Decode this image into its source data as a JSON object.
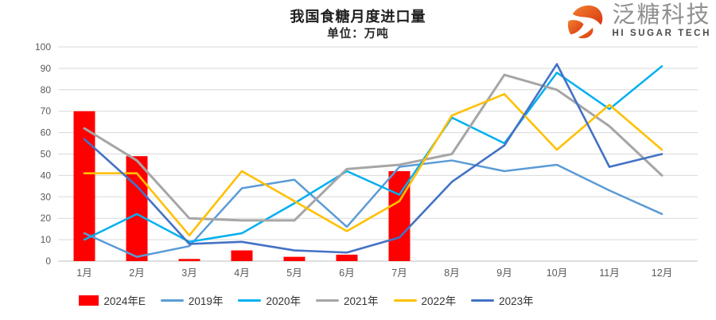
{
  "header": {
    "title": "我国食糖月度进口量",
    "subtitle": "单位：万吨"
  },
  "logo": {
    "cn_name": "泛糖科技",
    "en_name": "HI SUGAR TECH",
    "icon": "swirl-sphere-icon",
    "icon_color_start": "#F0812C",
    "icon_color_end": "#DB3512"
  },
  "chart_data": {
    "type": "combo-bar-line",
    "title": "我国食糖月度进口量",
    "subtitle": "单位：万吨",
    "ylabel": "万吨",
    "categories": [
      "1月",
      "2月",
      "3月",
      "4月",
      "5月",
      "6月",
      "7月",
      "8月",
      "9月",
      "10月",
      "11月",
      "12月"
    ],
    "ylim": [
      0,
      100
    ],
    "ytick_step": 10,
    "grid": "horizontal",
    "legend_position": "bottom",
    "bar_series": [
      {
        "name": "2024年E",
        "color": "#FF0000",
        "values": [
          70,
          49,
          1,
          5,
          2,
          3,
          42,
          null,
          null,
          null,
          null,
          null
        ]
      }
    ],
    "line_series": [
      {
        "name": "2019年",
        "color": "#5B9BD5",
        "width": 2.5,
        "values": [
          13,
          2,
          7,
          34,
          38,
          16,
          44,
          47,
          42,
          45,
          33,
          22
        ]
      },
      {
        "name": "2020年",
        "color": "#00B0F0",
        "width": 2.5,
        "values": [
          10,
          22,
          9,
          13,
          27,
          42,
          31,
          67,
          55,
          88,
          71,
          91
        ]
      },
      {
        "name": "2021年",
        "color": "#A6A6A6",
        "width": 3,
        "values": [
          62,
          47,
          20,
          19,
          19,
          43,
          45,
          50,
          87,
          80,
          63,
          40
        ]
      },
      {
        "name": "2022年",
        "color": "#FFC000",
        "width": 2.6,
        "values": [
          41,
          41,
          12,
          42,
          28,
          14,
          28,
          68,
          78,
          52,
          73,
          52
        ]
      },
      {
        "name": "2023年",
        "color": "#4472C4",
        "width": 2.6,
        "values": [
          57,
          35,
          8,
          9,
          5,
          4,
          11,
          37,
          54,
          92,
          44,
          50
        ]
      }
    ]
  }
}
